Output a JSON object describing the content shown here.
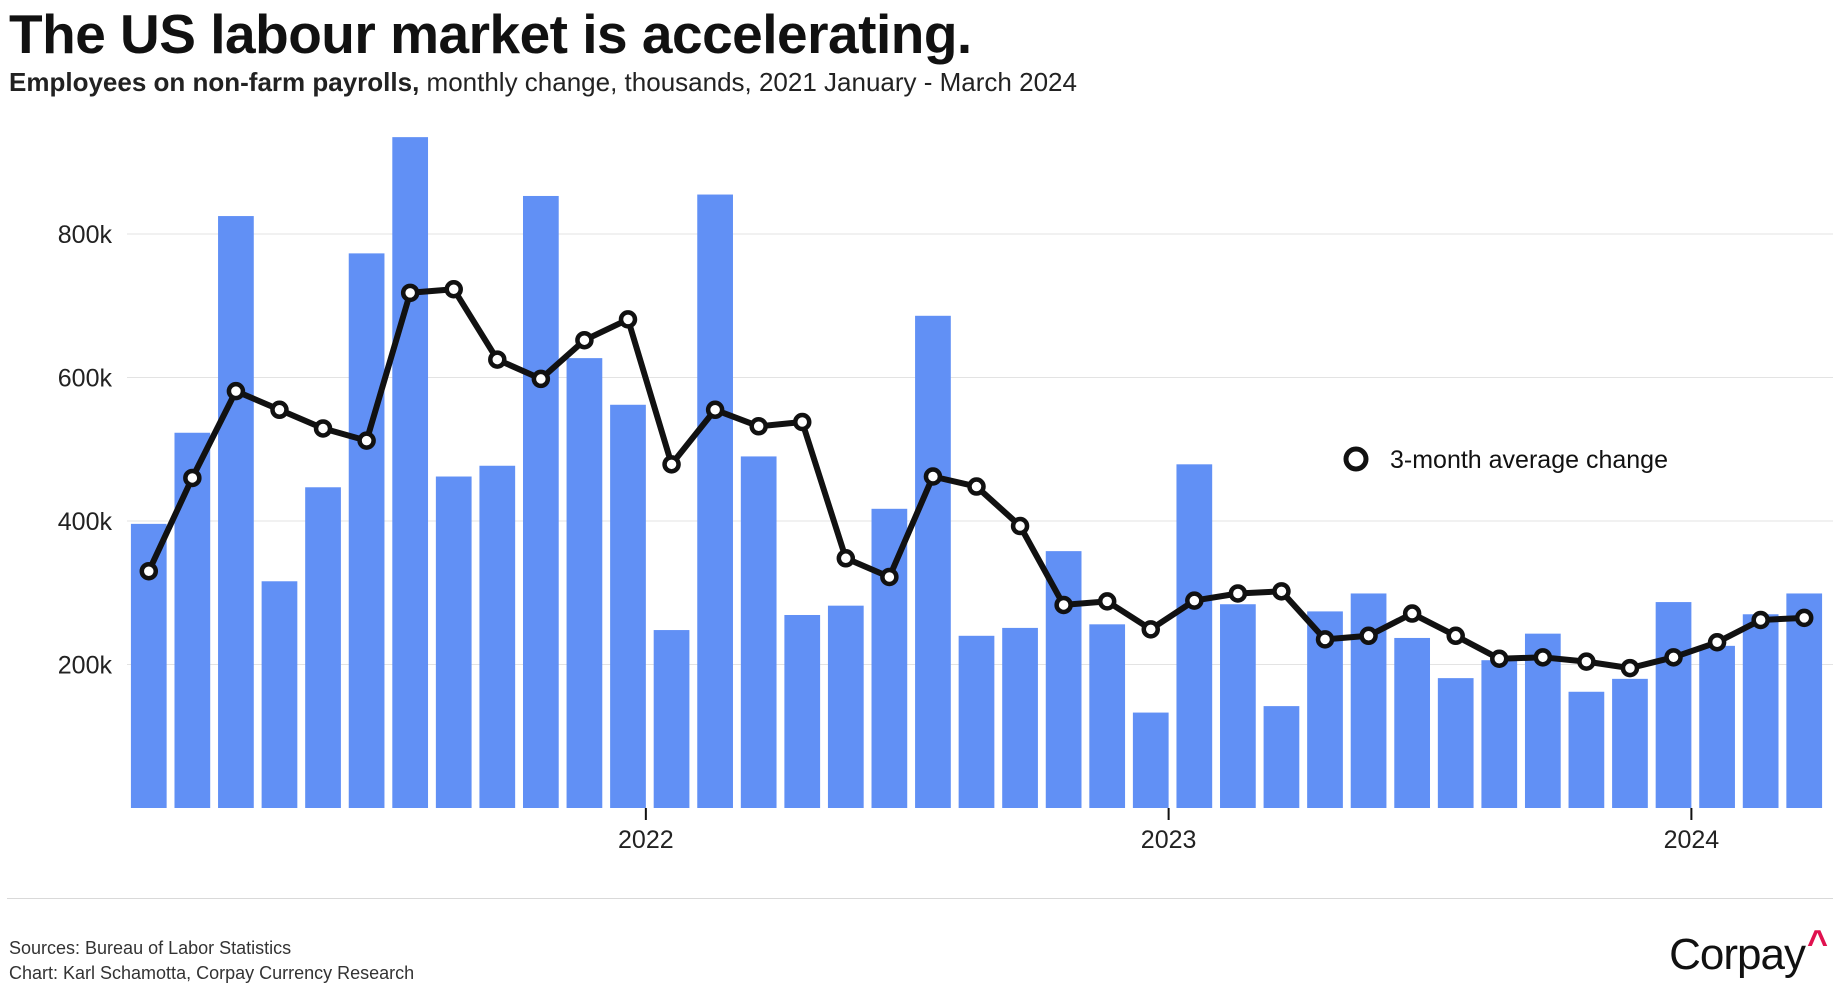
{
  "title": "The US labour market is accelerating.",
  "subtitle_bold": "Employees on non-farm payrolls,",
  "subtitle_rest": " monthly change, thousands, 2021 January - March 2024",
  "footer": {
    "sources": "Sources: Bureau of Labor Statistics",
    "credit": "Chart: Karl Schamotta, Corpay Currency Research"
  },
  "logo": {
    "text": "Corpay",
    "caret": "^"
  },
  "colors": {
    "bar": "#6190f5",
    "line": "#111111",
    "grid": "#e3e3e3",
    "accent": "#e0114f"
  },
  "chart_data": {
    "type": "bar",
    "title": "The US labour market is accelerating.",
    "ylabel": "Employees on non-farm payrolls, monthly change, thousands",
    "ylim": [
      0,
      900
    ],
    "y_ticks": [
      200,
      400,
      600,
      800
    ],
    "y_tick_labels": [
      "200k",
      "400k",
      "600k",
      "800k"
    ],
    "x_tick_labels": [
      {
        "label": "2022",
        "index": 12
      },
      {
        "label": "2023",
        "index": 24
      },
      {
        "label": "2024",
        "index": 36
      }
    ],
    "categories": [
      "2021-01",
      "2021-02",
      "2021-03",
      "2021-04",
      "2021-05",
      "2021-06",
      "2021-07",
      "2021-08",
      "2021-09",
      "2021-10",
      "2021-11",
      "2021-12",
      "2022-01",
      "2022-02",
      "2022-03",
      "2022-04",
      "2022-05",
      "2022-06",
      "2022-07",
      "2022-08",
      "2022-09",
      "2022-10",
      "2022-11",
      "2022-12",
      "2023-01",
      "2023-02",
      "2023-03",
      "2023-04",
      "2023-05",
      "2023-06",
      "2023-07",
      "2023-08",
      "2023-09",
      "2023-10",
      "2023-11",
      "2023-12",
      "2024-01",
      "2024-02",
      "2024-03"
    ],
    "series": [
      {
        "name": "Monthly change",
        "kind": "bar",
        "values": [
          396,
          523,
          825,
          316,
          447,
          773,
          935,
          462,
          477,
          853,
          627,
          562,
          248,
          855,
          490,
          269,
          282,
          417,
          686,
          240,
          251,
          358,
          256,
          133,
          479,
          284,
          142,
          274,
          299,
          237,
          181,
          206,
          243,
          162,
          180,
          287,
          226,
          270,
          299
        ]
      },
      {
        "name": "3-month average change",
        "kind": "line",
        "values": [
          330,
          460,
          581,
          555,
          529,
          512,
          718,
          723,
          625,
          598,
          652,
          681,
          479,
          555,
          532,
          538,
          348,
          322,
          462,
          448,
          393,
          283,
          288,
          249,
          289,
          299,
          302,
          235,
          240,
          271,
          240,
          208,
          210,
          204,
          195,
          210,
          231,
          262,
          265
        ]
      }
    ],
    "legend": {
      "label": "3-month average change",
      "position": "right"
    }
  }
}
